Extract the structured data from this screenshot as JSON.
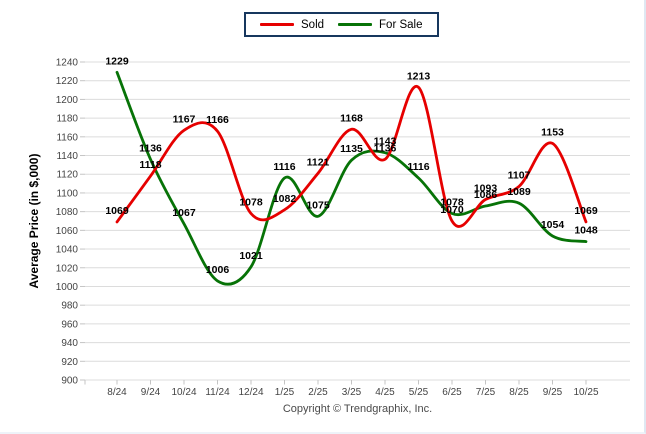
{
  "chart_data": {
    "type": "line",
    "title": "",
    "ylabel": "Average Price (in $,000)",
    "xlabel": "",
    "ylim": [
      900,
      1240
    ],
    "y_ticks": [
      1240,
      1220,
      1200,
      1180,
      1160,
      1140,
      1120,
      1100,
      1080,
      1060,
      1040,
      1020,
      1000,
      980,
      960,
      940,
      920,
      900
    ],
    "grid": true,
    "legend_position": "top",
    "x": [
      "8/24",
      "9/24",
      "10/24",
      "11/24",
      "12/24",
      "1/25",
      "2/25",
      "3/25",
      "4/25",
      "5/25",
      "6/25",
      "7/25",
      "8/25",
      "9/25",
      "10/25"
    ],
    "series": [
      {
        "name": "Sold",
        "color": "#e60000",
        "values": [
          1069,
          1118,
          1167,
          1166,
          1078,
          1082,
          1121,
          1168,
          1136,
          1213,
          1070,
          1093,
          1107,
          1153,
          1069
        ]
      },
      {
        "name": "For Sale",
        "color": "#077307",
        "values": [
          1229,
          1136,
          1067,
          1006,
          1021,
          1116,
          1075,
          1135,
          1143,
          1116,
          1078,
          1086,
          1089,
          1054,
          1048
        ]
      }
    ],
    "footer": "Copyright © Trendgraphix, Inc."
  },
  "style_colors": {
    "gridline": "#dcdcdc",
    "tick": "#c4c4c4",
    "axis_text": "#444444",
    "data_label": "#000000",
    "legend_border": "#17375e"
  }
}
